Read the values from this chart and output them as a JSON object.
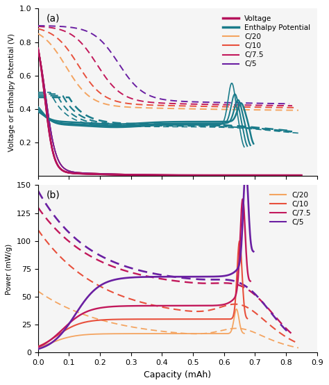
{
  "title_a": "(a)",
  "title_b": "(b)",
  "xlabel": "Capacity (mAh)",
  "ylabel_a": "Voltage or Enthalpy Potential (V)",
  "ylabel_b": "Power (mW/g)",
  "xlim": [
    0.0,
    0.9
  ],
  "ylim_a": [
    0.0,
    1.0
  ],
  "ylim_b": [
    0.0,
    150
  ],
  "xticks": [
    0.0,
    0.2,
    0.4,
    0.6,
    0.8
  ],
  "yticks_a": [
    0.2,
    0.4,
    0.6,
    0.8,
    1.0
  ],
  "yticks_b": [
    0,
    25,
    50,
    75,
    100,
    125,
    150
  ],
  "colors": {
    "voltage": "#b5135b",
    "enthalpy": "#1a7b8a",
    "C20": "#f4a460",
    "C10": "#e8503c",
    "C75": "#c2185b",
    "C5": "#6a1fa2"
  },
  "bg_color": "#f5f5f5"
}
